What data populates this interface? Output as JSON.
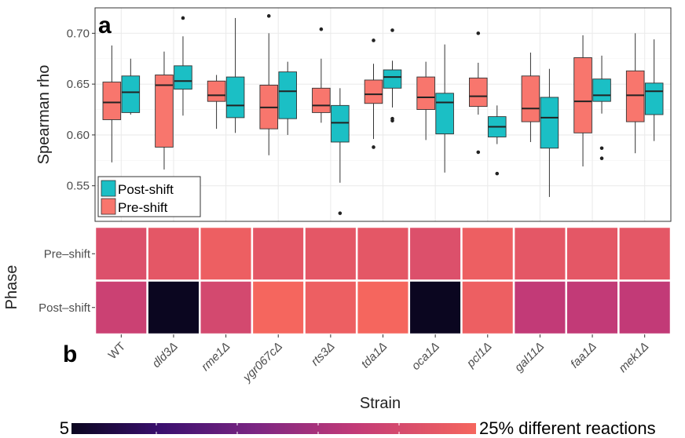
{
  "colors": {
    "post": "#1bbfc5",
    "pre": "#f8766d",
    "gridline": "#ebebeb",
    "panel_border": "#333333",
    "heat_low": "#0b0620",
    "heat_high": "#f5665e"
  },
  "chart_data": [
    {
      "type": "box",
      "panel": "a",
      "ylabel": "Spearman rho",
      "ylim": [
        0.515,
        0.725
      ],
      "yticks": [
        0.55,
        0.6,
        0.65,
        0.7
      ],
      "ytick_labels": [
        "0.55",
        "0.60",
        "0.65",
        "0.70"
      ],
      "grid": true,
      "legend_position": "bottom-left",
      "categories": [
        "WT",
        "dld3Δ",
        "rme1Δ",
        "ygr067cΔ",
        "rts3Δ",
        "tda1Δ",
        "oca1Δ",
        "pcl1Δ",
        "gal11Δ",
        "faa1Δ",
        "mek1Δ"
      ],
      "series": [
        {
          "name": "Post-shift",
          "boxes": [
            {
              "min": 0.62,
              "q1": 0.622,
              "median": 0.642,
              "q3": 0.658,
              "max": 0.675,
              "outliers": []
            },
            {
              "min": 0.619,
              "q1": 0.645,
              "median": 0.653,
              "q3": 0.668,
              "max": 0.697,
              "outliers": [
                0.715
              ]
            },
            {
              "min": 0.602,
              "q1": 0.617,
              "median": 0.629,
              "q3": 0.657,
              "max": 0.715,
              "outliers": []
            },
            {
              "min": 0.6,
              "q1": 0.616,
              "median": 0.643,
              "q3": 0.662,
              "max": 0.672,
              "outliers": []
            },
            {
              "min": 0.553,
              "q1": 0.593,
              "median": 0.612,
              "q3": 0.629,
              "max": 0.646,
              "outliers": [
                0.523
              ]
            },
            {
              "min": 0.627,
              "q1": 0.646,
              "median": 0.657,
              "q3": 0.664,
              "max": 0.673,
              "outliers": [
                0.703,
                0.616,
                0.614
              ]
            },
            {
              "min": 0.563,
              "q1": 0.601,
              "median": 0.632,
              "q3": 0.641,
              "max": 0.689,
              "outliers": []
            },
            {
              "min": 0.591,
              "q1": 0.598,
              "median": 0.608,
              "q3": 0.618,
              "max": 0.629,
              "outliers": [
                0.562
              ]
            },
            {
              "min": 0.539,
              "q1": 0.587,
              "median": 0.617,
              "q3": 0.637,
              "max": 0.665,
              "outliers": []
            },
            {
              "min": 0.621,
              "q1": 0.633,
              "median": 0.639,
              "q3": 0.655,
              "max": 0.678,
              "outliers": [
                0.587,
                0.577
              ]
            },
            {
              "min": 0.594,
              "q1": 0.62,
              "median": 0.643,
              "q3": 0.651,
              "max": 0.694,
              "outliers": []
            }
          ]
        },
        {
          "name": "Pre-shift",
          "boxes": [
            {
              "min": 0.573,
              "q1": 0.615,
              "median": 0.632,
              "q3": 0.652,
              "max": 0.688,
              "outliers": []
            },
            {
              "min": 0.566,
              "q1": 0.588,
              "median": 0.649,
              "q3": 0.659,
              "max": 0.682,
              "outliers": []
            },
            {
              "min": 0.606,
              "q1": 0.633,
              "median": 0.639,
              "q3": 0.653,
              "max": 0.659,
              "outliers": []
            },
            {
              "min": 0.58,
              "q1": 0.606,
              "median": 0.627,
              "q3": 0.649,
              "max": 0.7,
              "outliers": [
                0.717
              ]
            },
            {
              "min": 0.612,
              "q1": 0.622,
              "median": 0.629,
              "q3": 0.646,
              "max": 0.675,
              "outliers": [
                0.704
              ]
            },
            {
              "min": 0.596,
              "q1": 0.631,
              "median": 0.64,
              "q3": 0.654,
              "max": 0.67,
              "outliers": [
                0.693,
                0.588
              ]
            },
            {
              "min": 0.595,
              "q1": 0.625,
              "median": 0.637,
              "q3": 0.657,
              "max": 0.672,
              "outliers": []
            },
            {
              "min": 0.62,
              "q1": 0.628,
              "median": 0.638,
              "q3": 0.656,
              "max": 0.671,
              "outliers": [
                0.7,
                0.583
              ]
            },
            {
              "min": 0.593,
              "q1": 0.613,
              "median": 0.626,
              "q3": 0.658,
              "max": 0.681,
              "outliers": []
            },
            {
              "min": 0.569,
              "q1": 0.602,
              "median": 0.633,
              "q3": 0.676,
              "max": 0.698,
              "outliers": []
            },
            {
              "min": 0.582,
              "q1": 0.613,
              "median": 0.639,
              "q3": 0.663,
              "max": 0.7,
              "outliers": []
            }
          ]
        }
      ]
    },
    {
      "type": "heatmap",
      "panel": "b",
      "xlabel": "Strain",
      "ylabel": "Phase",
      "rows": [
        "Pre–shift",
        "Post–shift"
      ],
      "columns": [
        "WT",
        "dld3Δ",
        "rme1Δ",
        "ygr067cΔ",
        "rts3Δ",
        "tda1Δ",
        "oca1Δ",
        "pcl1Δ",
        "gal11Δ",
        "faa1Δ",
        "mek1Δ"
      ],
      "values": [
        [
          22,
          23,
          24,
          23,
          23,
          23,
          22,
          24,
          23,
          23,
          23
        ],
        [
          20,
          5,
          21,
          25,
          24,
          25,
          5,
          24,
          19,
          19,
          19
        ]
      ],
      "scale": {
        "min": 5,
        "max": 25,
        "min_label": "5",
        "max_label": "25% different reactions"
      }
    }
  ]
}
